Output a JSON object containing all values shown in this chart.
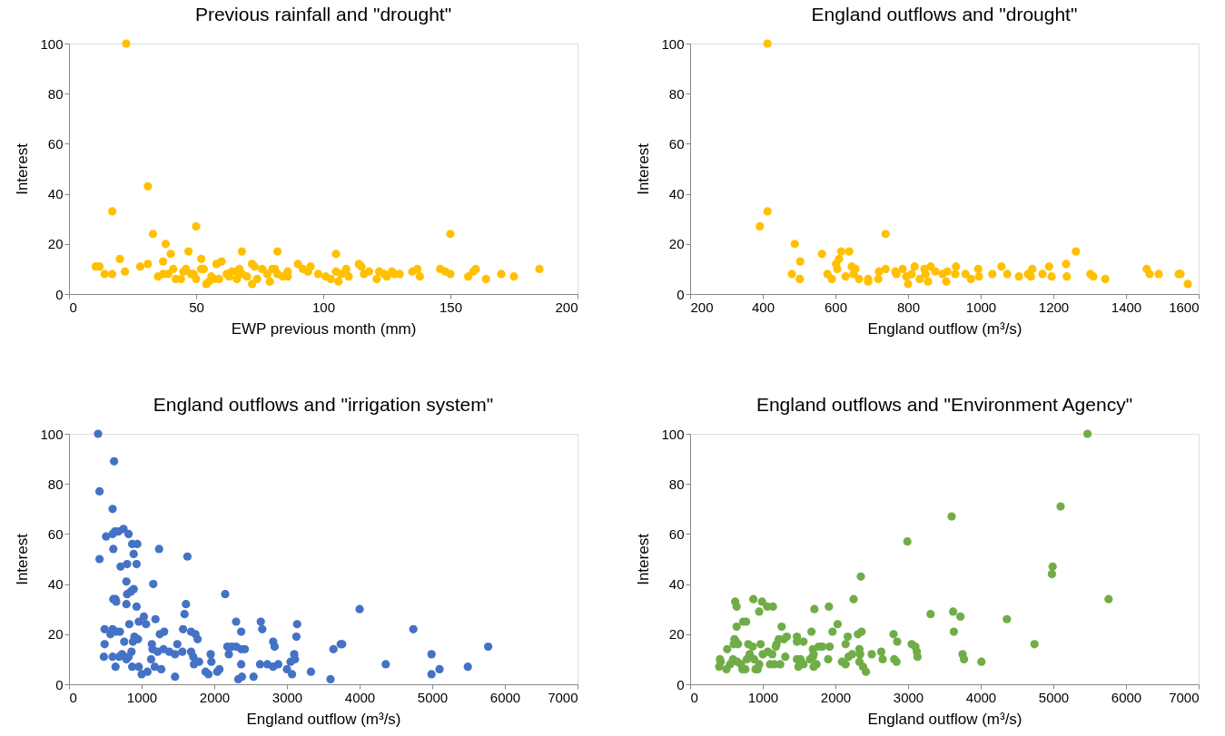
{
  "chart_data": [
    {
      "type": "scatter",
      "title": "Previous rainfall and \"drought\"",
      "xlabel": "EWP previous month (mm)",
      "ylabel": "Interest",
      "xlim": [
        0,
        200
      ],
      "xticks": [
        0,
        50,
        100,
        150,
        200
      ],
      "ylim": [
        0,
        100
      ],
      "yticks": [
        0,
        20,
        40,
        60,
        80,
        100
      ],
      "grid": false,
      "legend": false,
      "marker": "circle",
      "series": [
        {
          "color": "#ffc000",
          "x": [
            22.5,
            31,
            17,
            33,
            50,
            38,
            40,
            47,
            68,
            82,
            105,
            150,
            20,
            37,
            52,
            10.5,
            12,
            14,
            17,
            22,
            28,
            31,
            35,
            37,
            39,
            41,
            42,
            44,
            46,
            48,
            50,
            52,
            54,
            56,
            58,
            60,
            62,
            64,
            66,
            67,
            68,
            70,
            72,
            73,
            74,
            76,
            78,
            80,
            81,
            82,
            84,
            86,
            90,
            92,
            94,
            95,
            98,
            101,
            103,
            105,
            106,
            107,
            109,
            114,
            115,
            116,
            118,
            121,
            122,
            124,
            127,
            128,
            135,
            137,
            138,
            146,
            148,
            150,
            157,
            159,
            160,
            164,
            170,
            175,
            185,
            72,
            55,
            66,
            130,
            110,
            125,
            86,
            63,
            57,
            45,
            53,
            49,
            79,
            59
          ],
          "values": [
            100,
            43,
            33,
            24,
            27,
            20,
            16,
            17,
            17,
            17,
            16,
            24,
            14,
            13,
            14,
            11,
            11,
            8,
            8,
            9,
            11,
            12,
            7,
            8,
            8,
            10,
            6,
            6,
            10,
            8,
            6,
            10,
            4,
            7,
            12,
            13,
            8,
            9,
            9,
            10,
            8,
            7,
            12,
            11,
            6,
            10,
            8,
            10,
            10,
            8,
            7,
            9,
            12,
            10,
            9,
            11,
            8,
            7,
            6,
            9,
            5,
            8,
            10,
            12,
            11,
            8,
            9,
            6,
            9,
            8,
            9,
            8,
            9,
            10,
            7,
            10,
            9,
            8,
            7,
            9,
            10,
            6,
            8,
            7,
            10,
            4,
            5,
            6,
            8,
            7,
            7,
            7,
            7,
            6,
            9,
            10,
            8,
            5,
            6
          ]
        }
      ]
    },
    {
      "type": "scatter",
      "title": "England outflows and \"drought\"",
      "xlabel": "England outflow (m³/s)",
      "ylabel": "Interest",
      "xlim": [
        200,
        1600
      ],
      "xticks": [
        200,
        400,
        600,
        800,
        1000,
        1200,
        1400,
        1600
      ],
      "ylim": [
        0,
        100
      ],
      "yticks": [
        0,
        20,
        40,
        60,
        80,
        100
      ],
      "grid": false,
      "legend": false,
      "marker": "circle",
      "series": [
        {
          "color": "#ffc000",
          "x": [
            413,
            413,
            392,
            738,
            488,
            503,
            480,
            502,
            563,
            578,
            590,
            602,
            605,
            610,
            616,
            638,
            628,
            645,
            650,
            655,
            665,
            690,
            690,
            718,
            720,
            738,
            765,
            768,
            785,
            795,
            800,
            810,
            818,
            832,
            845,
            848,
            855,
            862,
            875,
            895,
            905,
            908,
            930,
            932,
            958,
            973,
            993,
            995,
            1032,
            1057,
            1073,
            1105,
            1130,
            1138,
            1142,
            1170,
            1188,
            1195,
            1235,
            1237,
            1262,
            1302,
            1310,
            1343,
            1457,
            1465,
            1490,
            1545,
            1550,
            1570
          ],
          "values": [
            100,
            33,
            27,
            24,
            20,
            13,
            8,
            6,
            16,
            8,
            6,
            12,
            10,
            14,
            17,
            17,
            7,
            11,
            8,
            10,
            6,
            6,
            5,
            6,
            9,
            10,
            9,
            8,
            10,
            7,
            4,
            8,
            11,
            6,
            10,
            8,
            5,
            11,
            9,
            8,
            5,
            9,
            8,
            11,
            8,
            6,
            10,
            7,
            8,
            11,
            8,
            7,
            8,
            7,
            10,
            8,
            11,
            7,
            12,
            7,
            17,
            8,
            7,
            6,
            10,
            8,
            8,
            8,
            8,
            4
          ]
        }
      ]
    },
    {
      "type": "scatter",
      "title": "England outflows and \"irrigation system\"",
      "xlabel": "England outflow (m³/s)",
      "ylabel": "Interest",
      "xlim": [
        0,
        7000
      ],
      "xticks": [
        0,
        1000,
        2000,
        3000,
        4000,
        5000,
        6000,
        7000
      ],
      "ylim": [
        0,
        100
      ],
      "yticks": [
        0,
        20,
        40,
        60,
        80,
        100
      ],
      "grid": false,
      "legend": false,
      "marker": "circle",
      "series": [
        {
          "color": "#4472c4",
          "x": [
            400,
            620,
            420,
            600,
            750,
            630,
            680,
            510,
            820,
            600,
            870,
            940,
            610,
            1240,
            890,
            420,
            1630,
            800,
            930,
            710,
            790,
            1160,
            890,
            800,
            850,
            610,
            640,
            650,
            790,
            930,
            1610,
            2150,
            1590,
            4000,
            1030,
            960,
            1060,
            830,
            1190,
            2300,
            2640,
            2660,
            2370,
            3140,
            3130,
            490,
            600,
            650,
            700,
            570,
            760,
            900,
            950,
            880,
            1250,
            1310,
            1570,
            1680,
            1740,
            1770,
            1140,
            1150,
            1220,
            1490,
            1300,
            1380,
            1460,
            1560,
            1680,
            1710,
            1720,
            1790,
            2180,
            2240,
            2300,
            2200,
            2420,
            2370,
            2810,
            2830,
            3640,
            3740,
            3760,
            4740,
            5770,
            490,
            480,
            600,
            640,
            690,
            730,
            790,
            860,
            820,
            870,
            960,
            1000,
            1080,
            1130,
            1180,
            1270,
            1460,
            1950,
            1960,
            1880,
            1920,
            2040,
            2070,
            2330,
            2380,
            2370,
            2540,
            2630,
            2730,
            2810,
            2880,
            3000,
            3050,
            3070,
            3100,
            3110,
            3330,
            3600,
            4360,
            4990,
            4990,
            5100,
            5490
          ],
          "values": [
            100,
            89,
            77,
            70,
            62,
            61,
            61,
            59,
            60,
            60,
            56,
            56,
            54,
            54,
            52,
            50,
            51,
            48,
            48,
            47,
            41,
            40,
            38,
            36,
            37,
            34,
            34,
            33,
            32,
            31,
            32,
            36,
            28,
            30,
            27,
            25,
            24,
            24,
            26,
            25,
            25,
            22,
            21,
            24,
            19,
            22,
            22,
            21,
            21,
            20,
            17,
            19,
            18,
            17,
            20,
            21,
            22,
            21,
            20,
            18,
            16,
            14,
            13,
            16,
            14,
            13,
            12,
            13,
            13,
            11,
            8,
            9,
            15,
            15,
            15,
            12,
            14,
            14,
            17,
            15,
            14,
            16,
            16,
            22,
            15,
            16,
            11,
            11,
            7,
            11,
            12,
            10,
            13,
            11,
            7,
            7,
            4,
            5,
            10,
            7,
            6,
            3,
            12,
            9,
            5,
            4,
            5,
            6,
            2,
            3,
            8,
            3,
            8,
            8,
            7,
            8,
            6,
            9,
            4,
            12,
            10,
            5,
            2,
            8,
            12,
            4,
            6,
            7
          ]
        }
      ]
    },
    {
      "type": "scatter",
      "title": "England outflows and \"Environment Agency\"",
      "xlabel": "England outflow (m³/s)",
      "ylabel": "Interest",
      "xlim": [
        0,
        7000
      ],
      "xticks": [
        0,
        1000,
        2000,
        3000,
        4000,
        5000,
        6000,
        7000
      ],
      "ylim": [
        0,
        100
      ],
      "yticks": [
        0,
        20,
        40,
        60,
        80,
        100
      ],
      "grid": false,
      "legend": false,
      "marker": "circle",
      "series": [
        {
          "color": "#70ad47",
          "x": [
            5470,
            5100,
            3600,
            2990,
            4990,
            4980,
            2350,
            5760,
            2250,
            870,
            990,
            620,
            640,
            1060,
            1140,
            950,
            1710,
            1910,
            3310,
            3620,
            3720,
            730,
            770,
            640,
            1260,
            2030,
            2360,
            2310,
            1670,
            1960,
            3630,
            4360,
            2170,
            1330,
            1290,
            1220,
            1470,
            1470,
            1560,
            1190,
            1180,
            2800,
            2850,
            610,
            630,
            600,
            660,
            800,
            860,
            970,
            1820,
            1770,
            1920,
            2140,
            2330,
            3050,
            3100,
            3120,
            3130,
            1690,
            1700,
            1070,
            1000,
            510,
            410,
            420,
            400,
            500,
            550,
            590,
            650,
            700,
            720,
            760,
            780,
            820,
            880,
            900,
            930,
            950,
            1130,
            1100,
            1160,
            1240,
            1310,
            1470,
            1520,
            1560,
            1650,
            1690,
            1700,
            1740,
            1490,
            1900,
            2090,
            2140,
            2180,
            2230,
            2330,
            2340,
            2380,
            2420,
            2500,
            2630,
            2650,
            2810,
            2840,
            3750,
            3770,
            4010,
            4740
          ],
          "values": [
            100,
            71,
            67,
            57,
            47,
            44,
            43,
            34,
            34,
            34,
            33,
            33,
            31,
            31,
            31,
            29,
            30,
            31,
            28,
            29,
            27,
            25,
            25,
            23,
            23,
            24,
            21,
            20,
            21,
            21,
            21,
            26,
            19,
            19,
            18,
            18,
            19,
            17,
            17,
            16,
            15,
            20,
            17,
            18,
            17,
            16,
            16,
            16,
            15,
            16,
            15,
            15,
            15,
            16,
            14,
            16,
            15,
            13,
            11,
            14,
            12,
            13,
            12,
            14,
            10,
            9,
            7,
            6,
            8,
            10,
            9,
            8,
            6,
            6,
            10,
            12,
            10,
            6,
            6,
            8,
            12,
            8,
            8,
            8,
            11,
            10,
            10,
            8,
            10,
            11,
            7,
            8,
            7,
            10,
            9,
            8,
            11,
            12,
            9,
            12,
            7,
            5,
            12,
            13,
            10,
            10,
            9,
            12,
            10,
            9,
            16
          ]
        }
      ]
    }
  ]
}
